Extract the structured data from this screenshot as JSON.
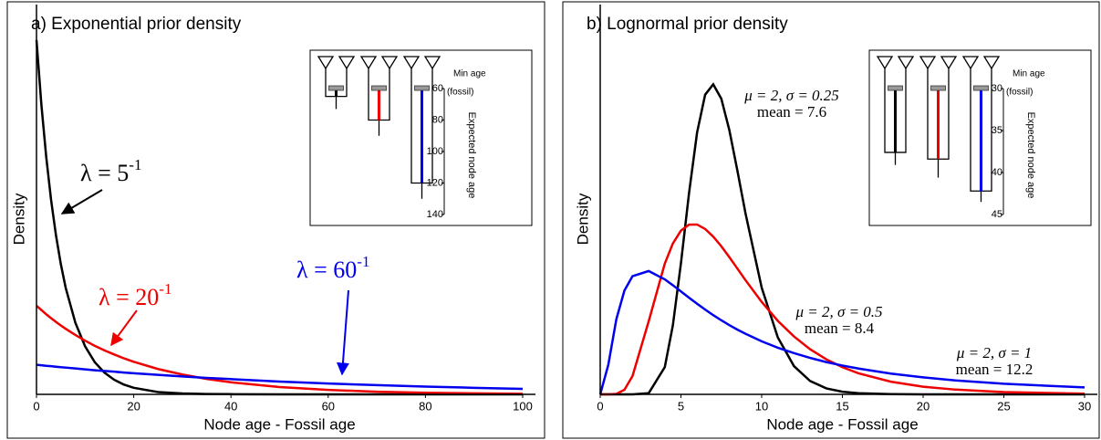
{
  "chart_data": [
    {
      "type": "line",
      "title": "a) Exponential prior density",
      "xlabel": "Node age - Fossil age",
      "ylabel": "Density",
      "x": [
        0,
        1,
        2,
        3,
        4,
        5,
        6,
        8,
        10,
        12,
        14,
        16,
        18,
        20,
        25,
        30,
        35,
        40,
        50,
        60,
        70,
        80,
        90,
        100
      ],
      "xlim": [
        0,
        100
      ],
      "xticks": [
        0,
        20,
        40,
        60,
        80,
        100
      ],
      "ylim": [
        0,
        0.22
      ],
      "series": [
        {
          "name": "λ = 5",
          "sup": "-1",
          "color": "#000000",
          "values": [
            0.2,
            0.1637,
            0.1341,
            0.1098,
            0.0899,
            0.0736,
            0.0602,
            0.0404,
            0.0271,
            0.0181,
            0.0122,
            0.0082,
            0.0055,
            0.0037,
            0.0013,
            0.0005,
            0.0002,
            0.0001,
            0,
            0,
            0,
            0,
            0,
            0
          ]
        },
        {
          "name": "λ = 20",
          "sup": "-1",
          "color": "#ee0000",
          "values": [
            0.05,
            0.0476,
            0.0452,
            0.043,
            0.0409,
            0.0389,
            0.037,
            0.0335,
            0.0303,
            0.0274,
            0.0248,
            0.0225,
            0.0203,
            0.0184,
            0.0143,
            0.0112,
            0.0087,
            0.0068,
            0.0041,
            0.0025,
            0.0015,
            0.0009,
            0.0006,
            0.0003
          ]
        },
        {
          "name": "λ = 60",
          "sup": "-1",
          "color": "#0000ee",
          "values": [
            0.0167,
            0.0164,
            0.0161,
            0.0159,
            0.0156,
            0.0153,
            0.0151,
            0.0146,
            0.0141,
            0.0136,
            0.0132,
            0.0128,
            0.0123,
            0.0119,
            0.011,
            0.0101,
            0.0093,
            0.0086,
            0.0072,
            0.0061,
            0.0052,
            0.0044,
            0.0037,
            0.0031
          ]
        }
      ],
      "inset": {
        "top_label": [
          "Min age",
          "(fossil)"
        ],
        "ylabel": "Expected node age",
        "ylim": [
          60,
          140
        ],
        "yticks": [
          60,
          80,
          100,
          120,
          140
        ],
        "node_ages": [
          65,
          80,
          120
        ],
        "whisker_ends": [
          73,
          90,
          130
        ]
      }
    },
    {
      "type": "line",
      "title": "b) Lognormal prior density",
      "xlabel": "Node age - Fossil age",
      "ylabel": "Density",
      "x": [
        0,
        0.5,
        1,
        1.5,
        2,
        3,
        4,
        4.5,
        5,
        5.5,
        6,
        6.5,
        7,
        7.5,
        8,
        8.5,
        9,
        10,
        11,
        12,
        13,
        14,
        15,
        16,
        18,
        20,
        22,
        25,
        30
      ],
      "xlim": [
        0,
        30
      ],
      "xticks": [
        0,
        5,
        10,
        15,
        20,
        25,
        30
      ],
      "ylim": [
        0,
        0.28
      ],
      "series": [
        {
          "name": "μ = 2, σ = 0.25",
          "mean_label": "mean = 7.6",
          "color": "#000000",
          "values": [
            0,
            0,
            0,
            0,
            0,
            0.0008,
            0.0196,
            0.0496,
            0.0942,
            0.1444,
            0.1881,
            0.2153,
            0.2227,
            0.2124,
            0.1897,
            0.1605,
            0.1299,
            0.0767,
            0.0409,
            0.0203,
            0.0096,
            0.0043,
            0.0019,
            0.0008,
            0.0002,
            0,
            0,
            0,
            0
          ]
        },
        {
          "name": "μ = 2, σ = 0.5",
          "mean_label": "mean = 8.4",
          "color": "#ee0000",
          "values": [
            0,
            0,
            0.0003,
            0.0033,
            0.0131,
            0.0524,
            0.0939,
            0.1084,
            0.1176,
            0.1219,
            0.122,
            0.1188,
            0.1133,
            0.1064,
            0.0985,
            0.0903,
            0.082,
            0.0664,
            0.0528,
            0.0416,
            0.0324,
            0.0252,
            0.0195,
            0.0151,
            0.0091,
            0.0055,
            0.0034,
            0.0016,
            0.0005
          ]
        },
        {
          "name": "μ = 2, σ = 1",
          "mean_label": "mean = 12.2",
          "color": "#0000ee",
          "values": [
            0,
            0.0212,
            0.054,
            0.0746,
            0.0849,
            0.0886,
            0.0826,
            0.0784,
            0.0739,
            0.0694,
            0.0651,
            0.0609,
            0.0569,
            0.0532,
            0.0497,
            0.0465,
            0.0435,
            0.0381,
            0.0335,
            0.0296,
            0.0262,
            0.0232,
            0.0207,
            0.0185,
            0.0149,
            0.0122,
            0.01,
            0.0076,
            0.005
          ]
        }
      ],
      "inset": {
        "top_label": [
          "Min age",
          "(fossil)"
        ],
        "ylabel": "Expected node age",
        "ylim": [
          30,
          45
        ],
        "yticks": [
          30,
          35,
          40,
          45
        ],
        "node_ages": [
          37.6,
          38.4,
          42.2
        ],
        "whisker_ends": [
          39.1,
          40.6,
          43.5
        ]
      }
    }
  ]
}
